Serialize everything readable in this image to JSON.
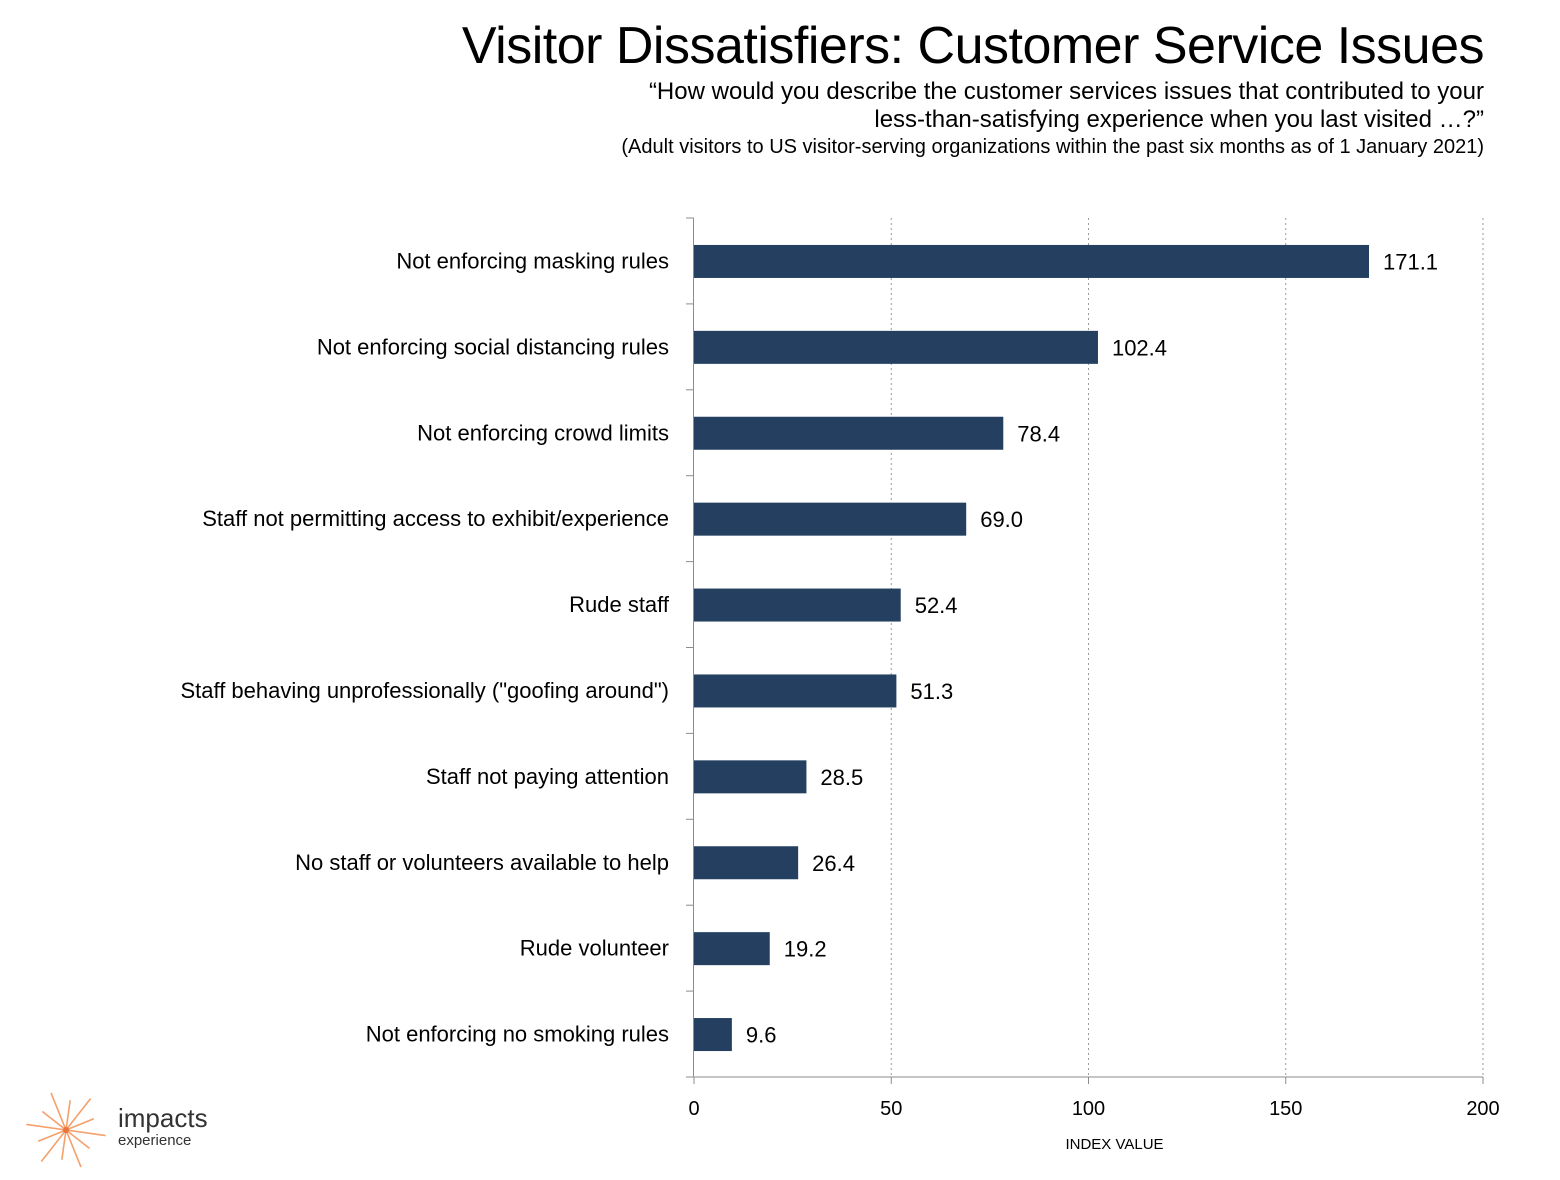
{
  "header": {
    "title": "Visitor Dissatisfiers: Customer Service Issues",
    "question_line1": "“How would you describe the customer services issues that contributed to your",
    "question_line2": "less-than-satisfying experience when you last visited …?”",
    "base": "(Adult visitors to US visitor-serving organizations within the past six months as of 1 January 2021)"
  },
  "logo": {
    "main": "impacts",
    "sub": "experience",
    "icon": "starburst-icon",
    "color": "#f4a06b"
  },
  "chart_data": {
    "type": "bar",
    "orientation": "horizontal",
    "categories": [
      "Not enforcing masking rules",
      "Not enforcing social distancing rules",
      "Not enforcing crowd limits",
      "Staff not permitting access to exhibit/experience",
      "Rude staff",
      "Staff behaving unprofessionally (\"goofing around\")",
      "Staff not paying attention",
      "No staff or volunteers available to help",
      "Rude volunteer",
      "Not enforcing no smoking rules"
    ],
    "values": [
      171.1,
      102.4,
      78.4,
      69.0,
      52.4,
      51.3,
      28.5,
      26.4,
      19.2,
      9.6
    ],
    "value_labels": [
      "171.1",
      "102.4",
      "78.4",
      "69.0",
      "52.4",
      "51.3",
      "28.5",
      "26.4",
      "19.2",
      "9.6"
    ],
    "xlabel": "INDEX VALUE",
    "xlim": [
      0,
      200
    ],
    "xticks": [
      0,
      50,
      100,
      150,
      200
    ],
    "grid": "vertical dotted",
    "bar_color": "#243f60"
  }
}
